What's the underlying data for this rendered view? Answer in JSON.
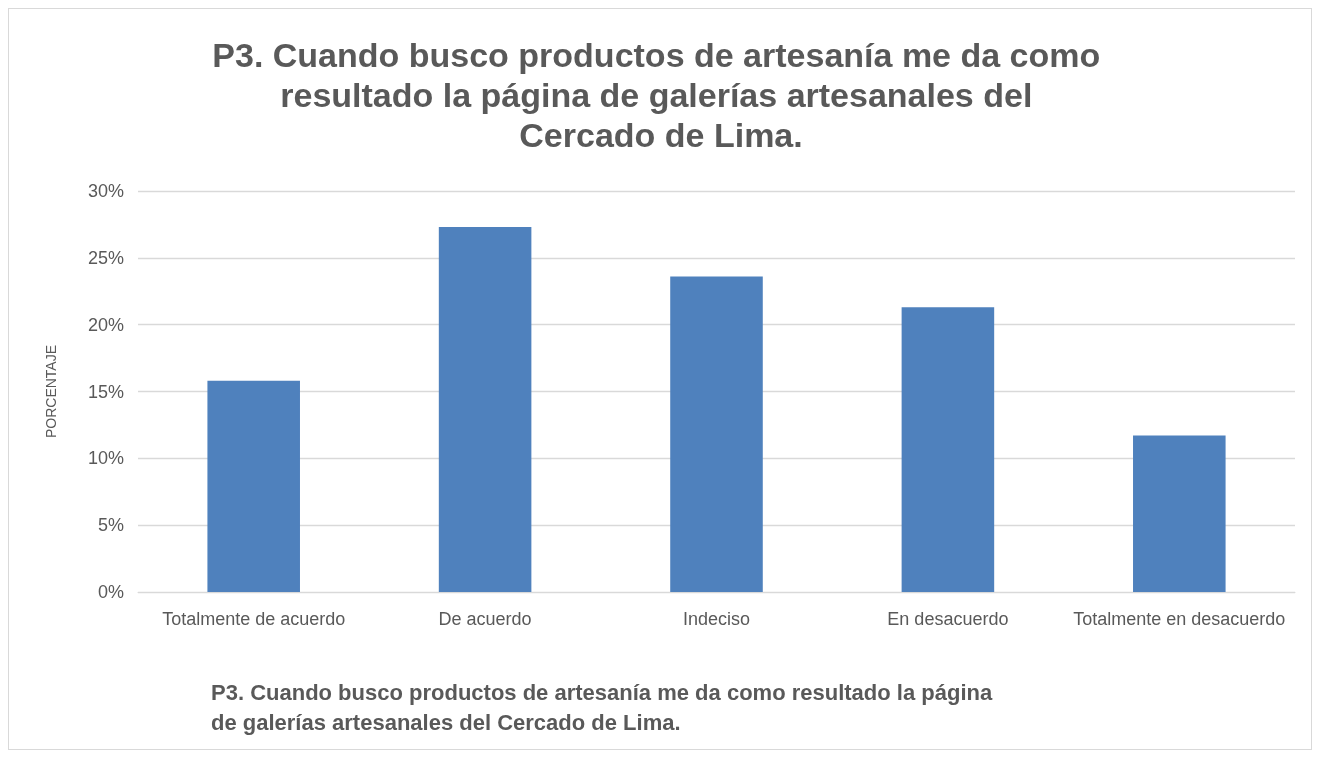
{
  "chart_data": {
    "type": "bar",
    "title": "P3. Cuando busco productos de artesanía me da como resultado la página de galerías artesanales del Cercado de Lima.",
    "ylabel": "PORCENTAJE",
    "categories": [
      "Totalmente de acuerdo",
      "De acuerdo",
      "Indeciso",
      "En desacuerdo",
      "Totalmente en desacuerdo"
    ],
    "values": [
      15.8,
      27.3,
      23.6,
      21.3,
      11.7
    ],
    "color": "#4f81bd",
    "ylim": [
      0,
      30
    ],
    "yticks": [
      {
        "value": 0,
        "label": "0%"
      },
      {
        "value": 5,
        "label": "5%"
      },
      {
        "value": 10,
        "label": "10%"
      },
      {
        "value": 15,
        "label": "15%"
      },
      {
        "value": 20,
        "label": "20%"
      },
      {
        "value": 25,
        "label": "25%"
      },
      {
        "value": 30,
        "label": "30%"
      }
    ],
    "grid": "y",
    "annotations": [
      "P3. Cuando busco productos de artesanía me da como resultado la página de galerías artesanales del Cercado de Lima."
    ]
  }
}
